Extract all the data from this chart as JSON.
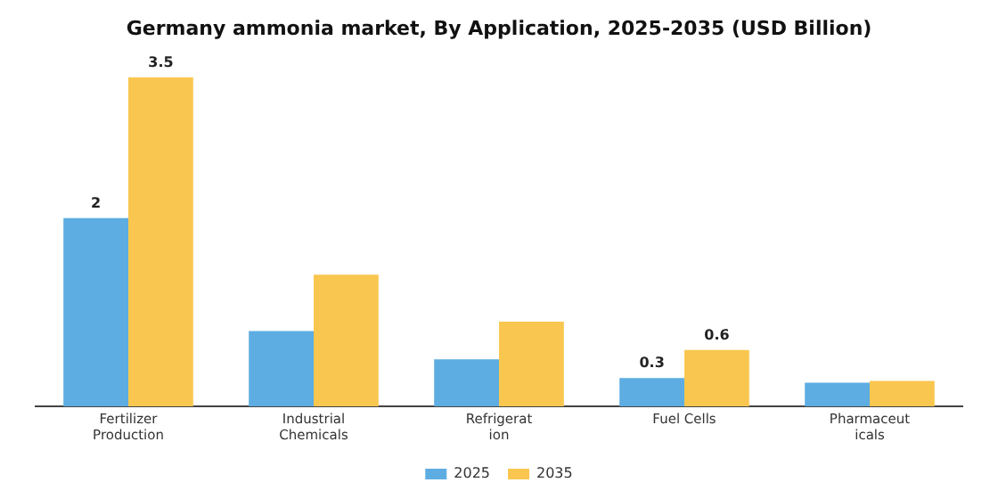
{
  "chart_data": {
    "type": "bar",
    "title": "Germany ammonia market, By Application, 2025-2035 (USD Billion)",
    "categories": [
      "Fertilizer\nProduction",
      "Industrial\nChemicals",
      "Refrigerat\nion",
      "Fuel Cells",
      "Pharmaceut\nicals"
    ],
    "series": [
      {
        "name": "2025",
        "color": "#5dade2",
        "values": [
          2,
          0.8,
          0.5,
          0.3,
          0.25
        ],
        "value_labels": [
          "2",
          null,
          null,
          "0.3",
          null
        ]
      },
      {
        "name": "2035",
        "color": "#f9c74f",
        "values": [
          3.5,
          1.4,
          0.9,
          0.6,
          0.27
        ],
        "value_labels": [
          "3.5",
          null,
          null,
          "0.6",
          null
        ]
      }
    ],
    "legend": "bottom",
    "grid": false
  }
}
